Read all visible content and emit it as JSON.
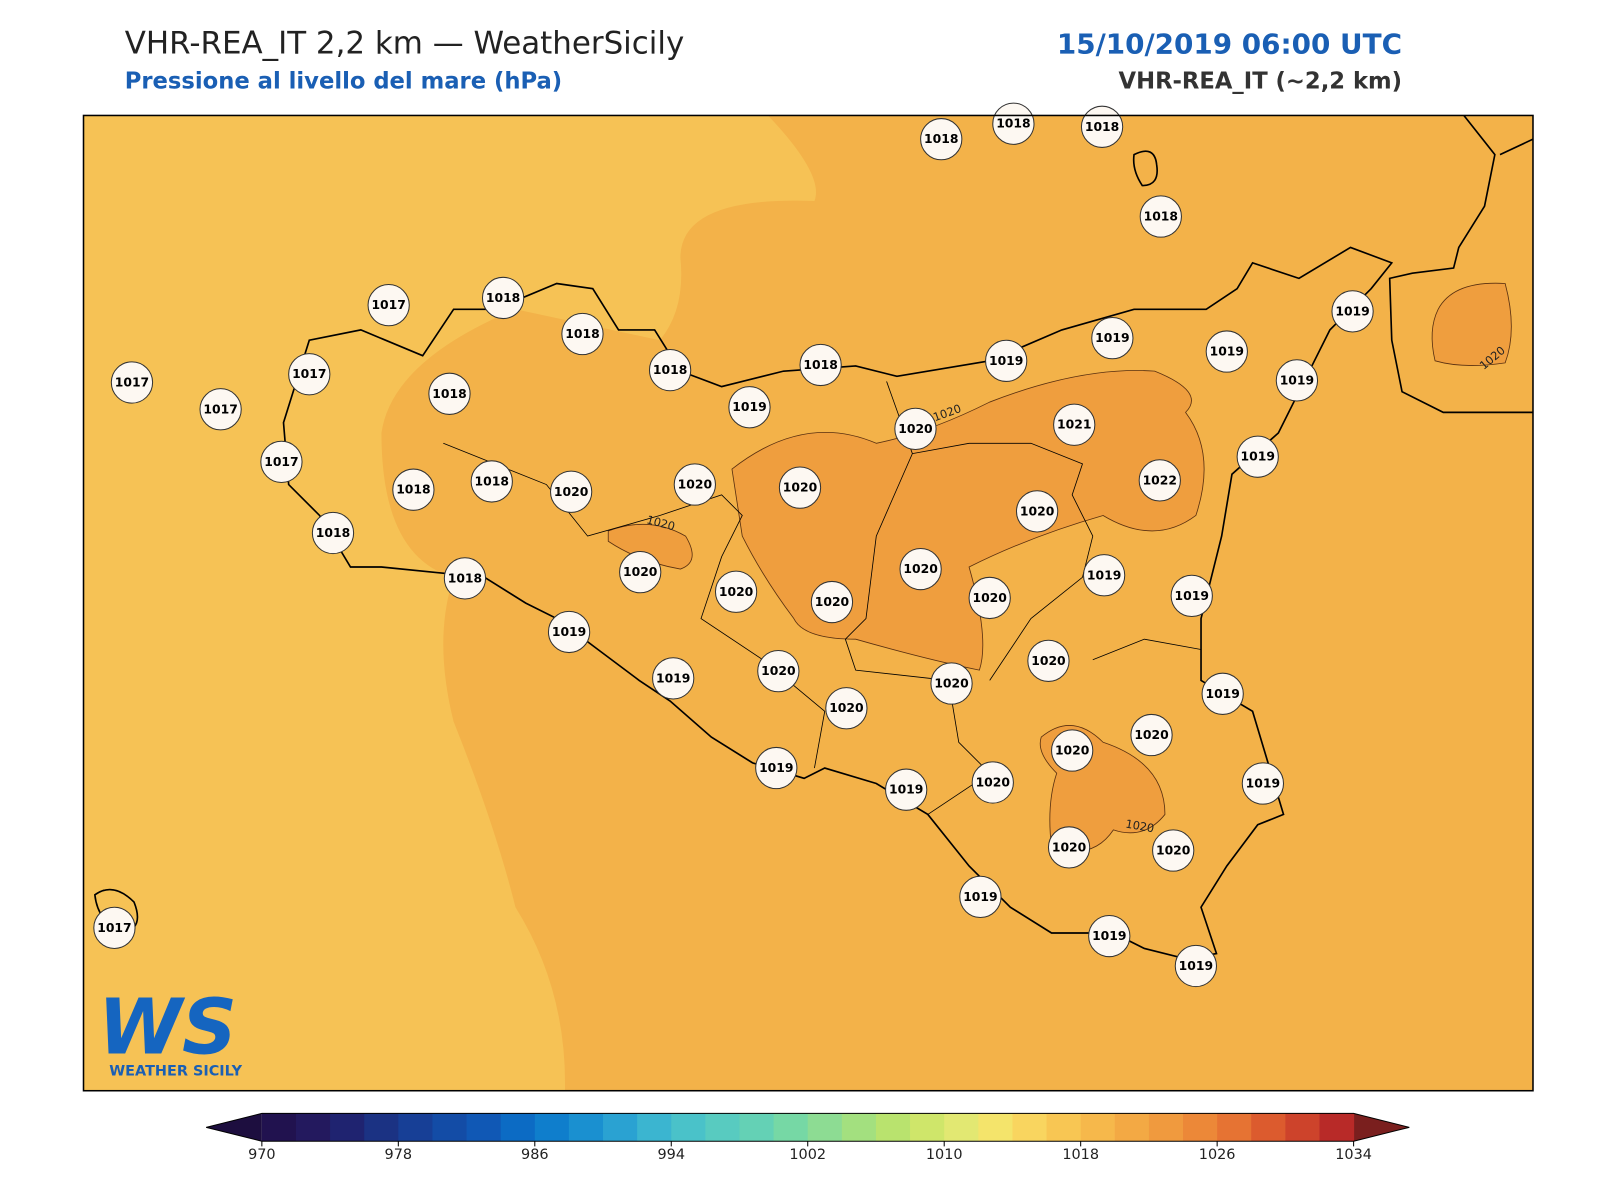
{
  "header": {
    "title": "VHR-REA_IT 2,2 km — WeatherSicily",
    "subtitle": "Pressione al livello del mare (hPa)",
    "datetime": "15/10/2019 06:00 UTC",
    "model": "VHR-REA_IT (~2,2 km)"
  },
  "map": {
    "stations": [
      1018,
      1018,
      1018,
      1018,
      1017,
      1018,
      1018,
      1018,
      1018,
      1019,
      1019,
      1019,
      1019,
      1019,
      1019,
      1017,
      1017,
      1017,
      1018,
      1017,
      1020,
      1021,
      1022,
      1019,
      1018,
      1018,
      1020,
      1020,
      1020,
      1020,
      1018,
      1018,
      1020,
      1020,
      1020,
      1020,
      1020,
      1019,
      1019,
      1019,
      1019,
      1020,
      1020,
      1020,
      1020,
      1019,
      1020,
      1020,
      1019,
      1019,
      1020,
      1019,
      1020,
      1020,
      1019,
      1019,
      1019,
      1017
    ],
    "contour_labels": [
      1020,
      1020,
      1020,
      1020
    ]
  },
  "colorbar": {
    "lim": [
      970,
      1034
    ],
    "ticks": [
      970,
      978,
      986,
      994,
      1002,
      1010,
      1018,
      1026,
      1034
    ],
    "colors": [
      "#21124f",
      "#23195e",
      "#1f2370",
      "#1b3283",
      "#173f96",
      "#134ca6",
      "#1058b5",
      "#0c6bc4",
      "#0f7ecc",
      "#1a90d0",
      "#2aa2d2",
      "#3bb5d0",
      "#4ac2c9",
      "#58cbc0",
      "#64d1b5",
      "#76d8a5",
      "#8ddc93",
      "#a3e07f",
      "#b9e36e",
      "#cfe66a",
      "#e2e872",
      "#f4e46b",
      "#f9d55f",
      "#f8c653",
      "#f6b84b",
      "#f3a944",
      "#f09a3e",
      "#ec8838",
      "#e67333",
      "#dc5b2e",
      "#cd432b",
      "#b82a28"
    ],
    "under_color": "#1d0e3f",
    "over_color": "#7a1f1e"
  },
  "logo": {
    "mark": "WS",
    "name": "WEATHER SICILY"
  }
}
